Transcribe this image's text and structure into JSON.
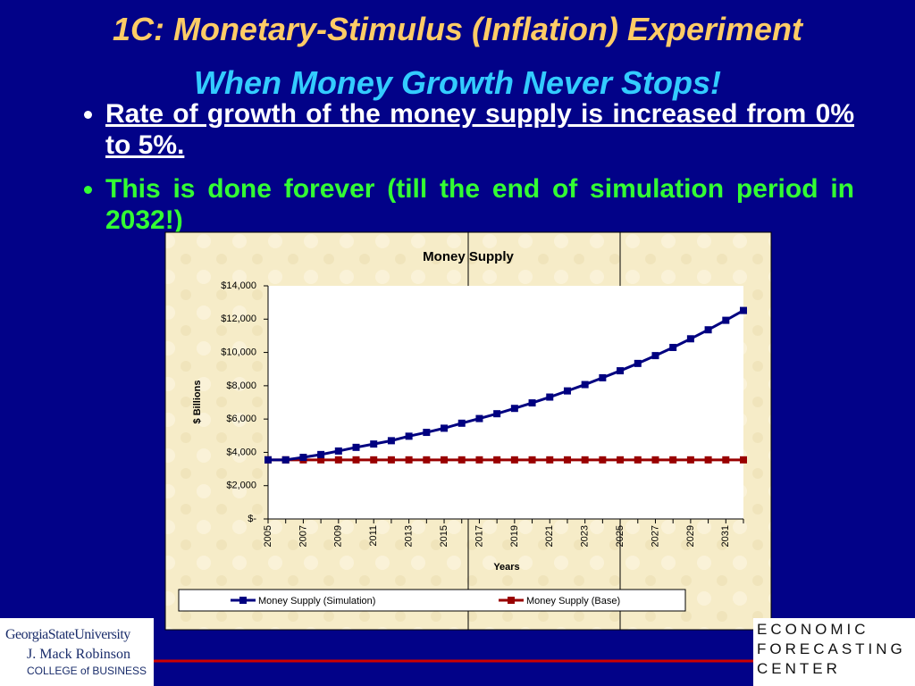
{
  "slide": {
    "title": "1C: Monetary-Stimulus (Inflation) Experiment",
    "subtitle": "When Money Growth Never Stops!",
    "bullets": [
      "Rate of growth of the money supply is increased from 0% to 5%.",
      "This is done forever (till the end of simulation period in 2032!)"
    ],
    "left_logo": [
      "GeorgiaStateUniversity",
      "J. Mack Robinson",
      "COLLEGE of BUSINESS"
    ],
    "right_logo": [
      "ECONOMIC",
      "FORECASTING",
      "CENTER"
    ]
  },
  "chart_data": {
    "type": "line",
    "title": "Money Supply",
    "x_label": "Years",
    "y_label": "$ Billions",
    "categories": [
      "2005",
      null,
      "2007",
      null,
      "2009",
      null,
      "2011",
      null,
      "2013",
      null,
      "2015",
      null,
      "2017",
      null,
      "2019",
      null,
      "2021",
      null,
      "2023",
      null,
      "2025",
      null,
      "2027",
      null,
      "2029",
      null,
      "2031",
      null
    ],
    "series": [
      {
        "name": "Money Supply (Simulation)",
        "color": "#000080",
        "values": [
          3550,
          3550,
          3700,
          3870,
          4080,
          4300,
          4500,
          4700,
          4970,
          5200,
          5450,
          5750,
          6030,
          6320,
          6640,
          6970,
          7320,
          7690,
          8070,
          8480,
          8900,
          9340,
          9810,
          10300,
          10820,
          11360,
          11930,
          12520
        ]
      },
      {
        "name": "Money Supply (Base)",
        "color": "#990000",
        "values": [
          3550,
          3550,
          3550,
          3550,
          3550,
          3550,
          3550,
          3550,
          3550,
          3550,
          3550,
          3550,
          3550,
          3550,
          3550,
          3550,
          3550,
          3550,
          3550,
          3550,
          3550,
          3550,
          3550,
          3550,
          3550,
          3550,
          3550,
          3550
        ]
      }
    ],
    "ylim": [
      0,
      14000
    ],
    "yticks": [
      {
        "value": 0,
        "label": "$-"
      },
      {
        "value": 2000,
        "label": "$2,000"
      },
      {
        "value": 4000,
        "label": "$4,000"
      },
      {
        "value": 6000,
        "label": "$6,000"
      },
      {
        "value": 8000,
        "label": "$8,000"
      },
      {
        "value": 10000,
        "label": "$10,000"
      },
      {
        "value": 12000,
        "label": "$12,000"
      },
      {
        "value": 14000,
        "label": "$14,000"
      }
    ],
    "legend": "bottom"
  }
}
